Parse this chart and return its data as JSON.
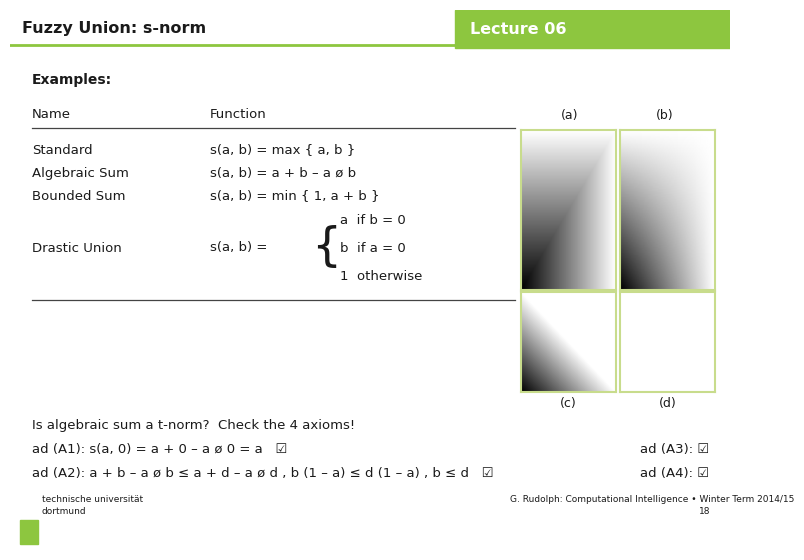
{
  "title": "Fuzzy Union: s-norm",
  "lecture": "Lecture 06",
  "header_bg": "#8dc63f",
  "bg_color": "#ffffff",
  "examples_label": "Examples:",
  "col_name": "Name",
  "col_function": "Function",
  "col_a": "(a)",
  "col_b": "(b)",
  "col_c": "(c)",
  "col_d": "(d)",
  "rows": [
    {
      "name": "Standard",
      "func": "s(a, b) = max { a, b }"
    },
    {
      "name": "Algebraic Sum",
      "func": "s(a, b) = a + b – a ø b"
    },
    {
      "name": "Bounded Sum",
      "func": "s(a, b) = min { 1, a + b }"
    },
    {
      "name": "Drastic Union",
      "func": "s(a, b) ="
    }
  ],
  "drastic_cases": [
    "a  if b = 0",
    "b  if a = 0",
    "1  otherwise"
  ],
  "bottom_line1": "Is algebraic sum a t-norm?  Check the 4 axioms!",
  "bottom_line2": "ad (A1): s(a, 0) = a + 0 – a ø 0 = a   ☑",
  "bottom_line3": "ad (A3): ☑",
  "bottom_line4": "ad (A2): a + b – a ø b ≤ a + d – a ø d , b (1 – a) ≤ d (1 – a) , b ≤ d   ☑",
  "bottom_line5": "ad (A4): ☑",
  "footer_left1": "technische universität",
  "footer_left2": "dortmund",
  "footer_right1": "G. Rudolph: Computational Intelligence • Winter Term 2014/15",
  "footer_right2": "18",
  "text_color": "#1a1a1a",
  "sep_color": "#444444",
  "img_border_color": "#c8dc8c"
}
